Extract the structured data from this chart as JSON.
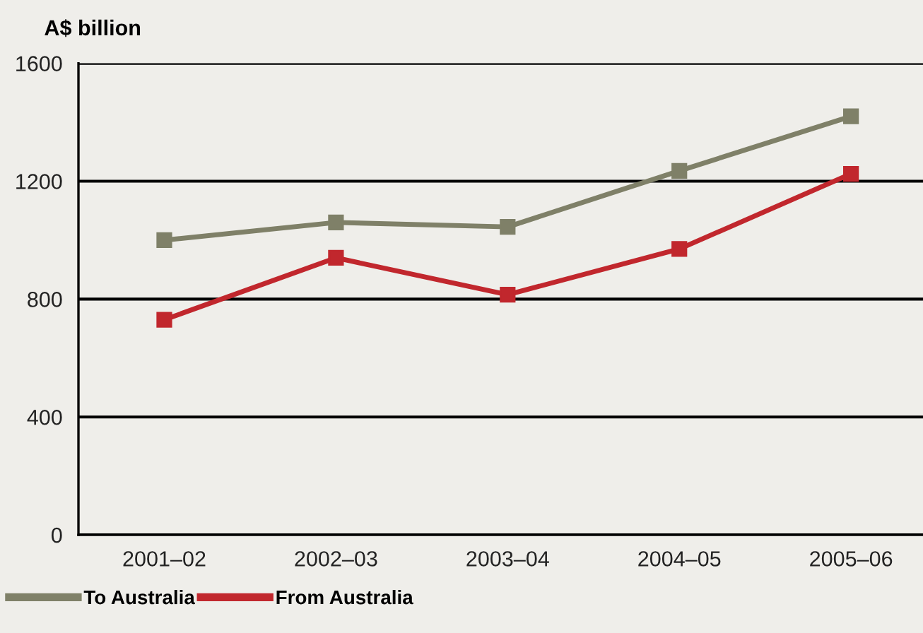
{
  "chart_data": {
    "type": "line",
    "ylabel": "A$ billion",
    "categories": [
      "2001–02",
      "2002–03",
      "2003–04",
      "2004–05",
      "2005–06"
    ],
    "series": [
      {
        "name": "To Australia",
        "color": "#7f8068",
        "values": [
          1000,
          1060,
          1045,
          1235,
          1420
        ]
      },
      {
        "name": "From Australia",
        "color": "#c1272d",
        "values": [
          730,
          940,
          815,
          970,
          1225
        ]
      }
    ],
    "ylim": [
      0,
      1600
    ],
    "yticks": [
      0,
      400,
      800,
      1200,
      1600
    ],
    "grid": "y",
    "legend": "bottom left",
    "marker": "square",
    "line_style": "solid"
  }
}
